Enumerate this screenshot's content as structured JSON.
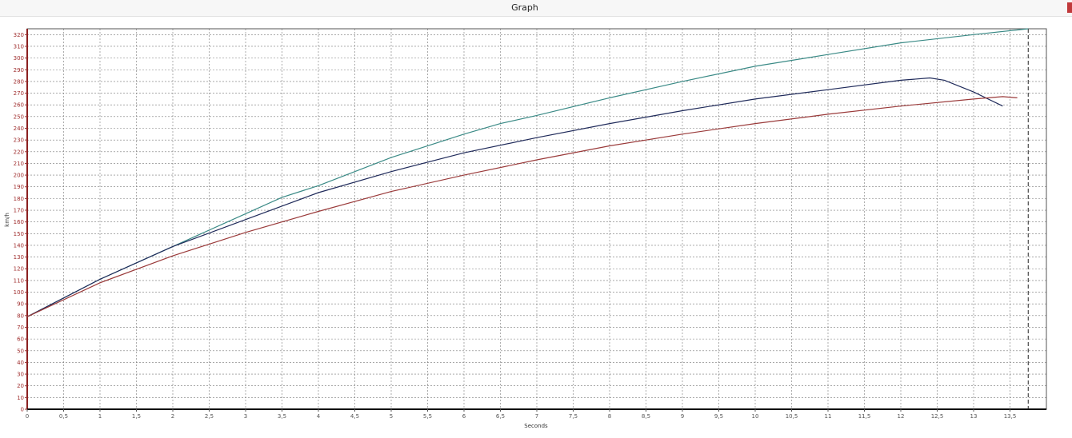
{
  "window": {
    "title": "Graph",
    "accent": "#c0393b"
  },
  "chart_data": {
    "type": "line",
    "title": "",
    "xlabel": "Seconds",
    "ylabel": "km/h",
    "xlim": [
      0,
      14
    ],
    "ylim": [
      0,
      325
    ],
    "xticks": [
      0,
      0.5,
      1,
      1.5,
      2,
      2.5,
      3,
      3.5,
      4,
      4.5,
      5,
      5.5,
      6,
      6.5,
      7,
      7.5,
      8,
      8.5,
      9,
      9.5,
      10,
      10.5,
      11,
      11.5,
      12,
      12.5,
      13,
      13.5
    ],
    "xtick_labels": [
      "0",
      "0,5",
      "1",
      "1,5",
      "2",
      "2,5",
      "3",
      "3,5",
      "4",
      "4,5",
      "5",
      "5,5",
      "6",
      "6,5",
      "7",
      "7,5",
      "8",
      "8,5",
      "9",
      "9,5",
      "10",
      "10,5",
      "11",
      "11,5",
      "12",
      "12,5",
      "13",
      "13,5"
    ],
    "yticks": [
      0,
      10,
      20,
      30,
      40,
      50,
      60,
      70,
      80,
      90,
      100,
      110,
      120,
      130,
      140,
      150,
      160,
      170,
      180,
      190,
      200,
      210,
      220,
      230,
      240,
      250,
      260,
      270,
      280,
      290,
      300,
      310,
      320
    ],
    "grid": true,
    "marker_line_x": 13.75,
    "series": [
      {
        "color": "#3a8a86",
        "x": [
          0,
          1,
          2,
          3,
          3.5,
          4,
          5,
          6,
          6.5,
          7,
          8,
          9,
          10,
          11,
          12,
          13,
          13.75
        ],
        "y": [
          79,
          111,
          139,
          167,
          181,
          191,
          215,
          235,
          244,
          251,
          266,
          280,
          293,
          303,
          313,
          320,
          325
        ]
      },
      {
        "color": "#1f2a5a",
        "x": [
          0,
          1,
          2,
          3,
          4,
          5,
          6,
          7,
          8,
          9,
          10,
          11,
          12,
          12.4,
          12.6,
          13,
          13.4
        ],
        "y": [
          79,
          111,
          139,
          162,
          185,
          203,
          219,
          232,
          244,
          255,
          265,
          273,
          281,
          283,
          281,
          271,
          259
        ]
      },
      {
        "color": "#9a3a3a",
        "x": [
          0,
          1,
          2,
          3,
          4,
          5,
          6,
          7,
          8,
          9,
          10,
          11,
          12,
          13,
          13.4,
          13.6
        ],
        "y": [
          79,
          108,
          131,
          151,
          169,
          186,
          200,
          213,
          225,
          235,
          244,
          252,
          259,
          265,
          267,
          266
        ]
      }
    ]
  }
}
